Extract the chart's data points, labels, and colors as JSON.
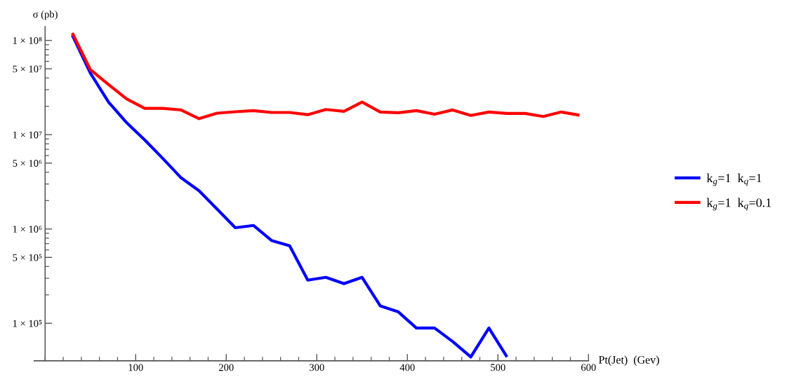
{
  "chart_data": {
    "type": "line",
    "xlabel": "Pt(Jet)  (Gev)",
    "ylabel": "σ (pb)",
    "x": [
      30,
      50,
      70,
      90,
      110,
      130,
      150,
      170,
      190,
      210,
      230,
      250,
      270,
      290,
      310,
      330,
      350,
      370,
      390,
      410,
      430,
      450,
      470,
      490,
      510,
      530,
      550,
      570,
      590
    ],
    "series": [
      {
        "name": "k$_{g}$=1  k$_{q}$=1",
        "color": "#0000ff",
        "x": [
          30,
          50,
          70,
          90,
          110,
          130,
          150,
          170,
          190,
          210,
          230,
          250,
          270,
          290,
          310,
          330,
          350,
          370,
          390,
          410,
          430,
          450,
          470,
          490,
          510
        ],
        "values": [
          114000000.0,
          45000000.0,
          22200000.0,
          13400000.0,
          8800000.0,
          5600000.0,
          3500000.0,
          2540000.0,
          1620000.0,
          1030000.0,
          1090000.0,
          755000.0,
          664000.0,
          287000.0,
          307000.0,
          263000.0,
          307000.0,
          153000.0,
          132000.0,
          89000.0,
          89000.0,
          64000.0,
          43900.0,
          89000.0,
          43900.0
        ]
      },
      {
        "name": "k$_{g}$=1  k$_{q}$=0.1",
        "color": "#ff0000",
        "values": [
          120000000.0,
          49000000.0,
          34000000.0,
          24000000.0,
          19000000.0,
          19000000.0,
          18300000.0,
          14800000.0,
          16900000.0,
          17500000.0,
          18000000.0,
          17200000.0,
          17200000.0,
          16300000.0,
          18500000.0,
          17700000.0,
          22200000.0,
          17400000.0,
          17100000.0,
          18000000.0,
          16500000.0,
          18300000.0,
          16000000.0,
          17400000.0,
          16800000.0,
          16800000.0,
          15600000.0,
          17400000.0,
          16100000.0
        ]
      }
    ],
    "xlim": [
      -12,
      600
    ],
    "ylim": [
      40000,
      140000000
    ],
    "xticks": [
      100,
      200,
      300,
      400,
      500,
      600
    ],
    "yticks": [
      {
        "value": 100000,
        "label": "1 × 10⁵"
      },
      {
        "value": 500000,
        "label": "5 × 10⁵"
      },
      {
        "value": 1000000,
        "label": "1 × 10⁶"
      },
      {
        "value": 5000000,
        "label": "5 × 10⁶"
      },
      {
        "value": 10000000,
        "label": "1 × 10⁷"
      },
      {
        "value": 50000000,
        "label": "5 × 10⁷"
      },
      {
        "value": 100000000,
        "label": "1 × 10⁸"
      }
    ],
    "log": "y",
    "legend": "right"
  }
}
